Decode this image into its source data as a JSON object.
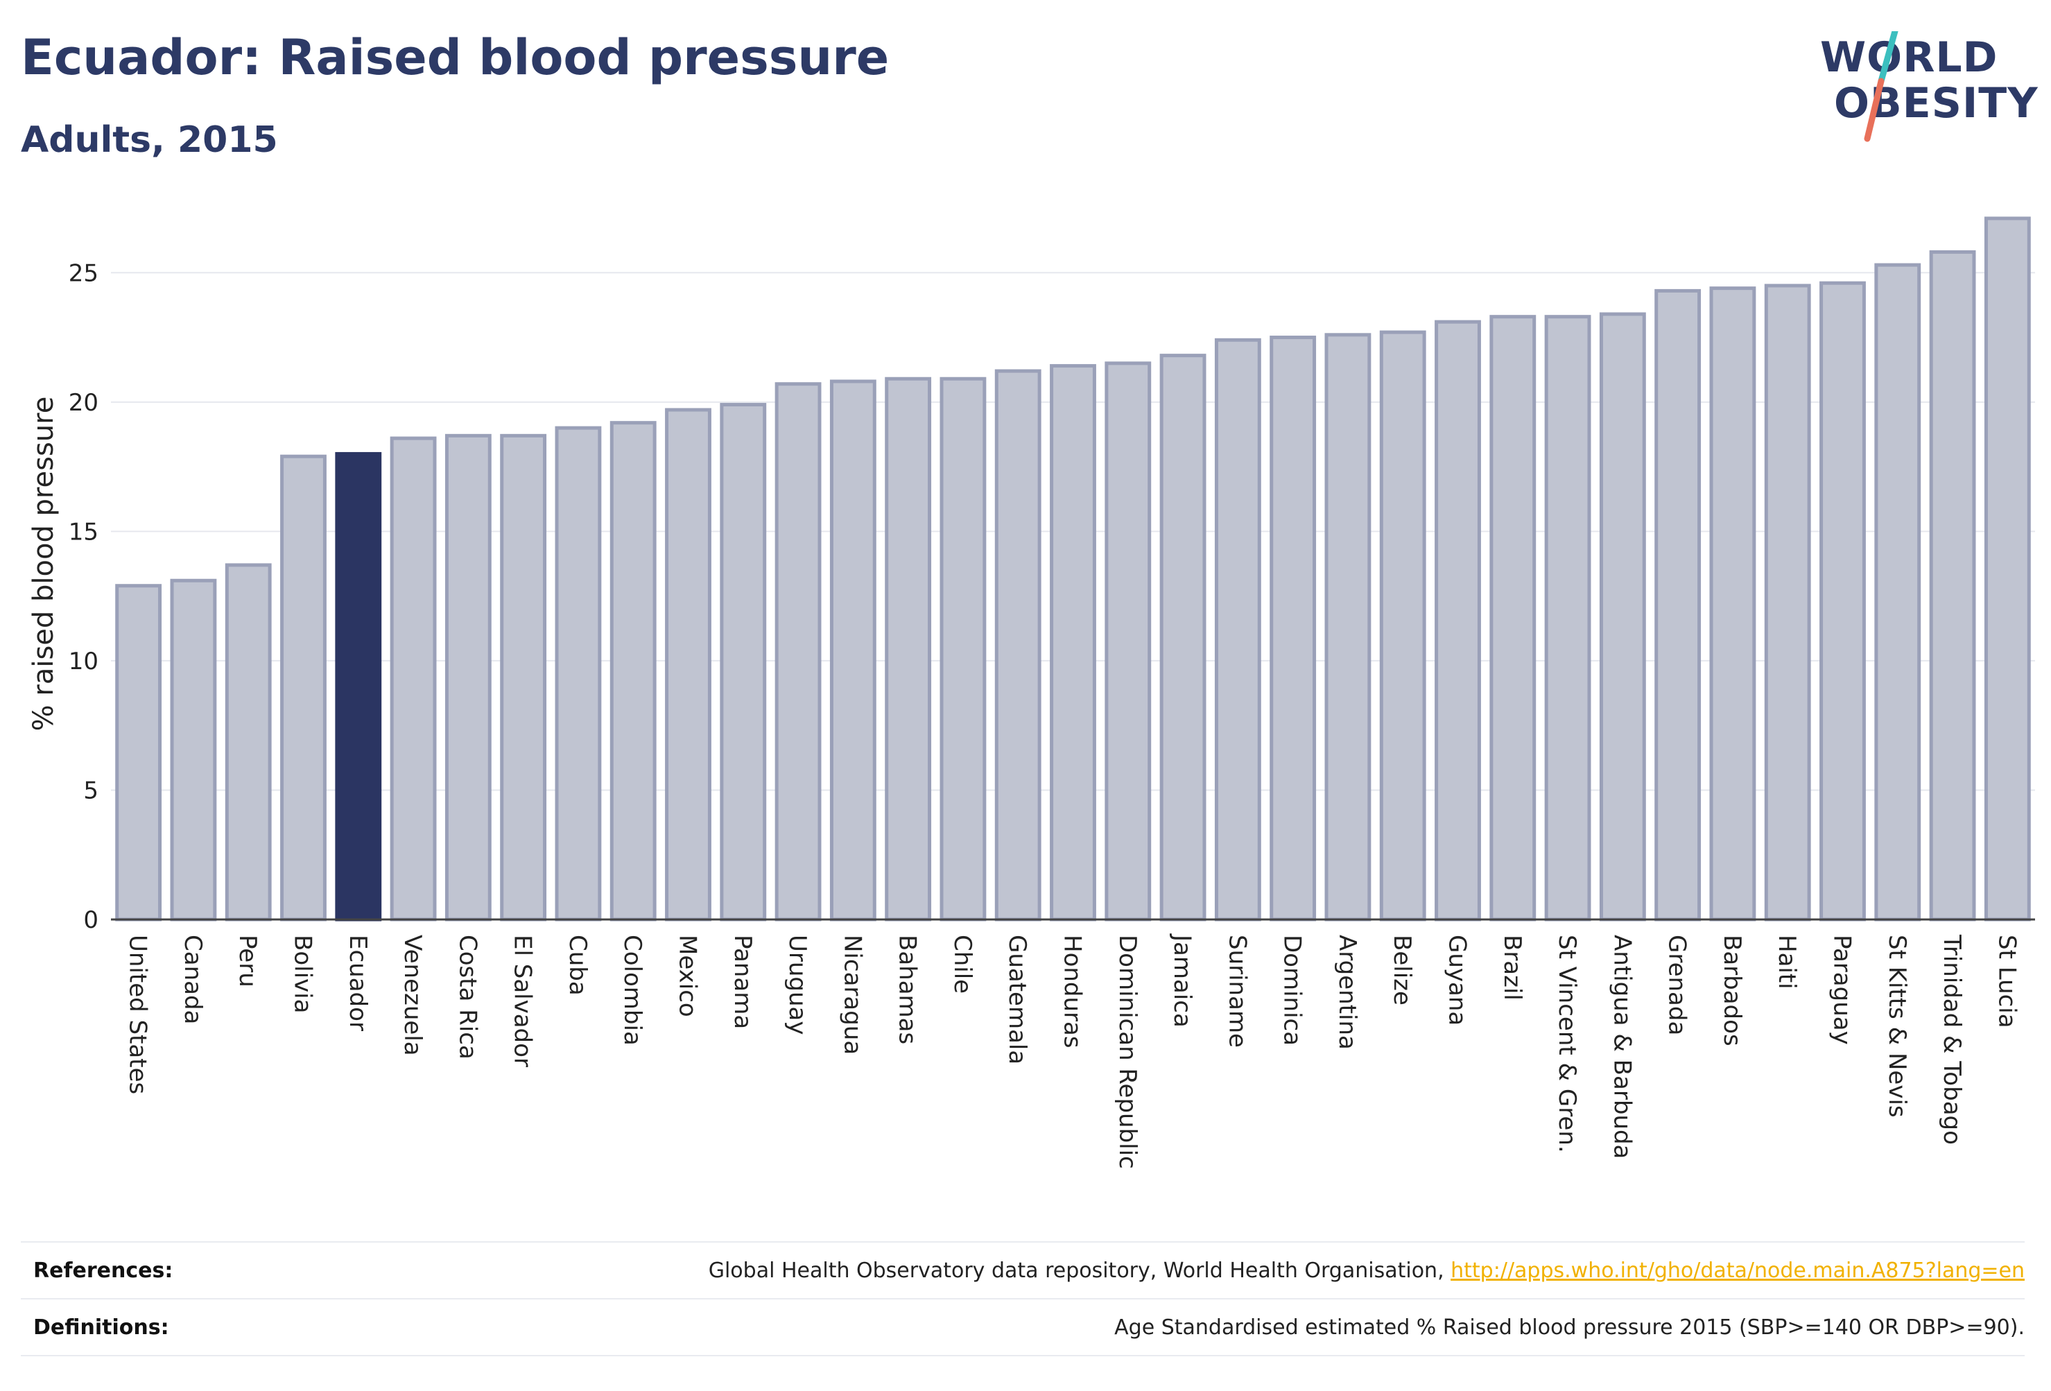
{
  "header": {
    "title": "Ecuador: Raised blood pressure",
    "subtitle": "Adults, 2015"
  },
  "logo": {
    "line1": "WORLD",
    "line2": "OBESITY",
    "slash_colors": [
      "#3cbfbf",
      "#e8705a"
    ]
  },
  "chart_data": {
    "type": "bar",
    "ylabel": "% raised blood pressure",
    "ylim": [
      0,
      27.5
    ],
    "yticks": [
      0,
      5,
      10,
      15,
      20,
      25
    ],
    "grid": true,
    "highlight": "Ecuador",
    "colors": {
      "bar": "#c0c4d1",
      "bar_edge": "#9aa0b8",
      "highlight": "#2b3562"
    },
    "categories": [
      "United States",
      "Canada",
      "Peru",
      "Bolivia",
      "Ecuador",
      "Venezuela",
      "Costa Rica",
      "El Salvador",
      "Cuba",
      "Colombia",
      "Mexico",
      "Panama",
      "Uruguay",
      "Nicaragua",
      "Bahamas",
      "Chile",
      "Guatemala",
      "Honduras",
      "Dominican Republic",
      "Jamaica",
      "Suriname",
      "Dominica",
      "Argentina",
      "Belize",
      "Guyana",
      "Brazil",
      "St Vincent & Gren.",
      "Antigua & Barbuda",
      "Grenada",
      "Barbados",
      "Haiti",
      "Paraguay",
      "St Kitts & Nevis",
      "Trinidad & Tobago",
      "St Lucia"
    ],
    "values": [
      12.9,
      13.1,
      13.7,
      17.9,
      18.0,
      18.6,
      18.7,
      18.7,
      19.0,
      19.2,
      19.7,
      19.9,
      20.7,
      20.8,
      20.9,
      20.9,
      21.2,
      21.4,
      21.5,
      21.8,
      22.4,
      22.5,
      22.6,
      22.7,
      23.1,
      23.3,
      23.3,
      23.4,
      24.3,
      24.4,
      24.5,
      24.6,
      25.3,
      25.8,
      27.1
    ]
  },
  "footer": {
    "references_label": "References:",
    "references_text": "Global Health Observatory data repository, World Health Organisation, ",
    "references_link": "http://apps.who.int/gho/data/node.main.A875?lang=en",
    "definitions_label": "Definitions:",
    "definitions_text": "Age Standardised estimated % Raised blood pressure 2015 (SBP>=140 OR DBP>=90)."
  }
}
